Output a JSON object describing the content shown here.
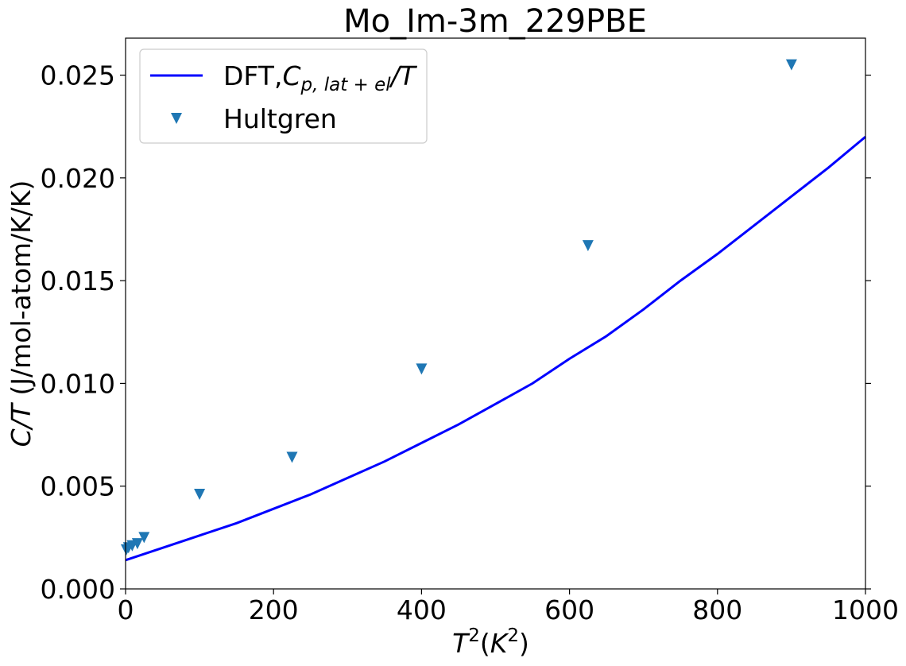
{
  "chart_data": {
    "type": "line",
    "title": "Mo_Im-3m_229PBE",
    "xlabel": {
      "base": "T",
      "sup": "2",
      "open": "(",
      "unit": "K",
      "unit_sup": "2",
      "close": ")"
    },
    "ylabel": {
      "italic": "C/T",
      "rest": " (J/mol-atom/K/K)"
    },
    "xlim": [
      0,
      1000
    ],
    "ylim": [
      0,
      0.0268
    ],
    "x_ticks": [
      0,
      200,
      400,
      600,
      800,
      1000
    ],
    "x_tick_labels": [
      "0",
      "200",
      "400",
      "600",
      "800",
      "1000"
    ],
    "y_ticks": [
      0,
      0.005,
      0.01,
      0.015,
      0.02,
      0.025
    ],
    "y_tick_labels": [
      "0.000",
      "0.005",
      "0.010",
      "0.015",
      "0.020",
      "0.025"
    ],
    "grid": false,
    "legend_position": "top-left",
    "series": [
      {
        "name": "DFT,Cp,lat+el/T",
        "legend": {
          "prefix": "DFT,",
          "C": "C",
          "sub": "p, lat + el",
          "suffix": "/T"
        },
        "kind": "line",
        "color": "#0000ff",
        "x": [
          0,
          50,
          100,
          150,
          200,
          250,
          300,
          350,
          400,
          450,
          500,
          550,
          600,
          650,
          700,
          750,
          800,
          850,
          900,
          950,
          1000
        ],
        "y": [
          0.0014,
          0.002,
          0.0026,
          0.0032,
          0.0039,
          0.0046,
          0.0054,
          0.0062,
          0.0071,
          0.008,
          0.009,
          0.01,
          0.0112,
          0.0123,
          0.0136,
          0.015,
          0.0163,
          0.0177,
          0.0191,
          0.0205,
          0.022
        ]
      },
      {
        "name": "Hultgren",
        "kind": "scatter",
        "marker": "triangle-down",
        "color": "#1f77b4",
        "x": [
          1,
          4,
          9,
          16,
          25,
          100,
          225,
          400,
          625,
          900
        ],
        "y": [
          0.0019,
          0.002,
          0.0021,
          0.0022,
          0.0025,
          0.0046,
          0.0064,
          0.0107,
          0.0167,
          0.0255
        ]
      }
    ]
  }
}
